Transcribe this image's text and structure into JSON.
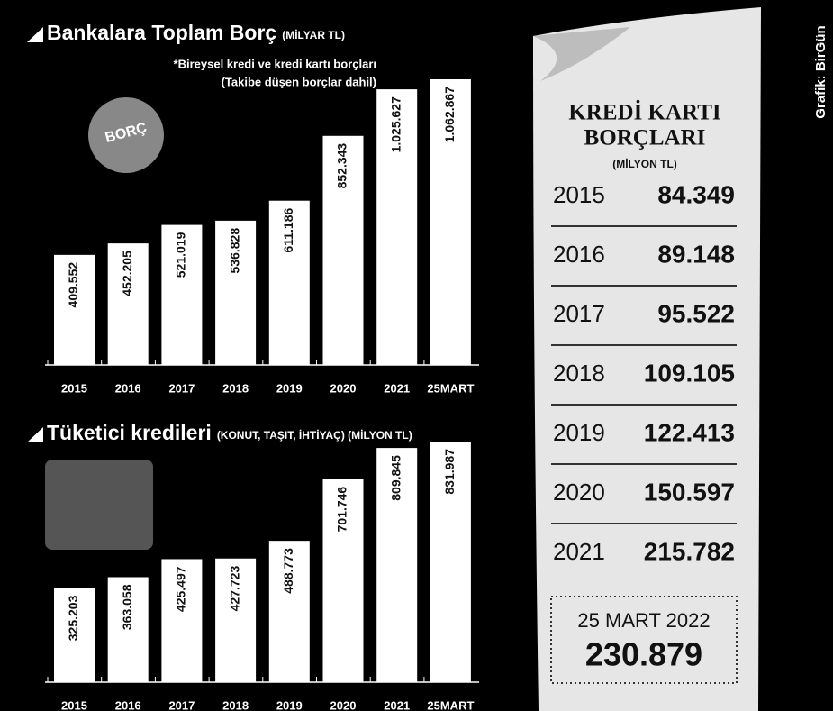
{
  "chart_data": [
    {
      "type": "bar",
      "title": "Bankalara Toplam Borç",
      "subtitle": "(MİLYAR TL)",
      "note": [
        "*Bireysel kredi ve kredi kartı borçları",
        "(Takibe düşen borçlar dahil)"
      ],
      "categories": [
        "2015",
        "2016",
        "2017",
        "2018",
        "2019",
        "2020",
        "2021",
        "25MART"
      ],
      "values": [
        409.552,
        452.205,
        521.019,
        536.828,
        611.186,
        852.343,
        1025.627,
        1062.867
      ],
      "value_labels": [
        "409.552",
        "452.205",
        "521.019",
        "536.828",
        "611.186",
        "852.343",
        "1.025.627",
        "1.062.867"
      ],
      "color": "#ffffff",
      "illustration_text": "BORÇ"
    },
    {
      "type": "bar",
      "title": "Tüketici kredileri",
      "subtitle": "(KONUT, TAŞIT, İHTİYAÇ) (MİLYON TL)",
      "categories": [
        "2015",
        "2016",
        "2017",
        "2018",
        "2019",
        "2020",
        "2021",
        "25MART"
      ],
      "values": [
        325203,
        363058,
        425497,
        427723,
        488773,
        701746,
        809845,
        831987
      ],
      "value_labels": [
        "325.203",
        "363.058",
        "425.497",
        "427.723",
        "488.773",
        "701.746",
        "809.845",
        "831.987"
      ],
      "color": "#ffffff"
    }
  ],
  "card_debt": {
    "title_lines": [
      "KREDİ KARTI",
      "BORÇLARI"
    ],
    "unit": "(MİLYON TL)",
    "rows": [
      [
        "2015",
        "84.349"
      ],
      [
        "2016",
        "89.148"
      ],
      [
        "2017",
        "95.522"
      ],
      [
        "2018",
        "109.105"
      ],
      [
        "2019",
        "122.413"
      ],
      [
        "2020",
        "150.597"
      ],
      [
        "2021",
        "215.782"
      ]
    ],
    "final": {
      "label": "25 MART 2022",
      "value": "230.879"
    }
  },
  "credit": "Grafik: BirGün"
}
